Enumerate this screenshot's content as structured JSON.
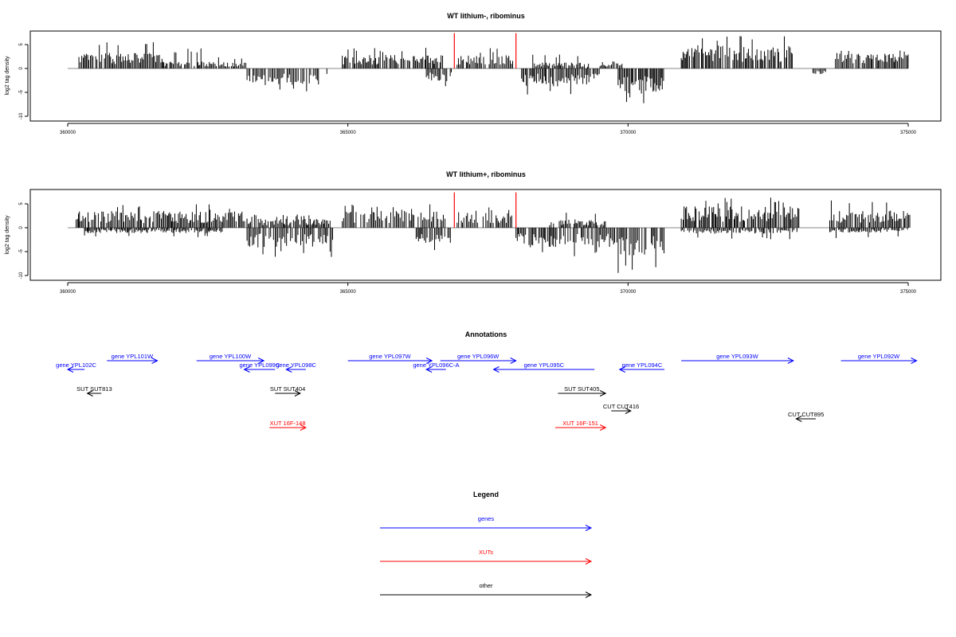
{
  "chart_data": [
    {
      "type": "bar",
      "title": "WT lithium-, ribominus",
      "ylabel": "log2 tag density",
      "xlabel": "",
      "xlim": [
        359000,
        376200
      ],
      "ylim": [
        -11,
        8
      ],
      "xticks": [
        "360000",
        "365000",
        "370000",
        "375000"
      ],
      "yticks": [
        "-10",
        "-5",
        "0",
        "5"
      ],
      "grid": false,
      "bar_color": "#000000",
      "highlight_color": "#ff0000",
      "highlights": [
        {
          "x": 366900,
          "value": 7.4
        },
        {
          "x": 368000,
          "value": 7.4
        }
      ],
      "segments": [
        {
          "start": 360200,
          "end": 361700,
          "sign": 1,
          "amp": 2.6,
          "max": 6.0
        },
        {
          "start": 361700,
          "end": 362600,
          "sign": 1,
          "amp": 1.2,
          "max": 4.3
        },
        {
          "start": 362600,
          "end": 363200,
          "sign": 1,
          "amp": 1.1,
          "max": 2.5
        },
        {
          "start": 363200,
          "end": 364650,
          "sign": -1,
          "amp": 2.8,
          "max": 5.4
        },
        {
          "start": 364900,
          "end": 366700,
          "sign": 1,
          "amp": 2.3,
          "max": 4.5
        },
        {
          "start": 366400,
          "end": 366850,
          "sign": -1,
          "amp": 2.2,
          "max": 4.2
        },
        {
          "start": 366950,
          "end": 367950,
          "sign": 1,
          "amp": 2.2,
          "max": 4.3
        },
        {
          "start": 368100,
          "end": 369500,
          "sign": -1,
          "amp": 3.0,
          "max": 5.7
        },
        {
          "start": 368300,
          "end": 369300,
          "sign": 1,
          "amp": 1.0,
          "max": 3.0
        },
        {
          "start": 369500,
          "end": 369900,
          "sign": 1,
          "amp": 1.2,
          "max": 2.4
        },
        {
          "start": 369800,
          "end": 370650,
          "sign": -1,
          "amp": 4.2,
          "max": 8.0
        },
        {
          "start": 370950,
          "end": 372950,
          "sign": 1,
          "amp": 3.9,
          "max": 7.2
        },
        {
          "start": 373300,
          "end": 373550,
          "sign": -1,
          "amp": 0.9,
          "max": 1.2
        },
        {
          "start": 373700,
          "end": 375000,
          "sign": 1,
          "amp": 2.5,
          "max": 3.8
        }
      ]
    },
    {
      "type": "bar",
      "title": "WT lithium+, ribominus",
      "ylabel": "log2 tag density",
      "xlabel": "",
      "xlim": [
        359000,
        376200
      ],
      "ylim": [
        -11,
        8
      ],
      "xticks": [
        "360000",
        "365000",
        "370000",
        "375000"
      ],
      "yticks": [
        "-10",
        "-5",
        "0",
        "5"
      ],
      "grid": false,
      "bar_color": "#000000",
      "highlight_color": "#ff0000",
      "highlights": [
        {
          "x": 366900,
          "value": 7.4
        },
        {
          "x": 368000,
          "value": 7.4
        }
      ],
      "segments": [
        {
          "start": 360150,
          "end": 363200,
          "sign": 1,
          "amp": 2.8,
          "max": 5.0
        },
        {
          "start": 360300,
          "end": 362800,
          "sign": -1,
          "amp": 0.9,
          "max": 2.0
        },
        {
          "start": 363200,
          "end": 364750,
          "sign": -1,
          "amp": 3.4,
          "max": 6.3
        },
        {
          "start": 363200,
          "end": 364700,
          "sign": 1,
          "amp": 1.5,
          "max": 3.0
        },
        {
          "start": 364900,
          "end": 366750,
          "sign": 1,
          "amp": 2.9,
          "max": 5.0
        },
        {
          "start": 366200,
          "end": 366850,
          "sign": -1,
          "amp": 2.6,
          "max": 5.4
        },
        {
          "start": 366950,
          "end": 367950,
          "sign": 1,
          "amp": 2.6,
          "max": 4.3
        },
        {
          "start": 368000,
          "end": 369800,
          "sign": -1,
          "amp": 3.3,
          "max": 6.3
        },
        {
          "start": 368600,
          "end": 369600,
          "sign": 1,
          "amp": 1.4,
          "max": 3.5
        },
        {
          "start": 369800,
          "end": 370650,
          "sign": -1,
          "amp": 4.8,
          "max": 10.1
        },
        {
          "start": 370950,
          "end": 373050,
          "sign": 1,
          "amp": 3.6,
          "max": 6.5
        },
        {
          "start": 370950,
          "end": 373050,
          "sign": -1,
          "amp": 1.0,
          "max": 2.5
        },
        {
          "start": 373600,
          "end": 375050,
          "sign": 1,
          "amp": 2.9,
          "max": 5.8
        },
        {
          "start": 373600,
          "end": 375000,
          "sign": -1,
          "amp": 0.8,
          "max": 2.2
        }
      ]
    }
  ],
  "annotations": {
    "title": "Annotations",
    "colors": {
      "gene": "#0000ff",
      "xut": "#ff0000",
      "other": "#000000"
    },
    "genes": [
      {
        "label": "gene YPL102C",
        "from": 360300,
        "to": 360000,
        "row": 1
      },
      {
        "label": "gene YPL101W",
        "from": 360700,
        "to": 361600,
        "row": 0
      },
      {
        "label": "gene YPL100W",
        "from": 362300,
        "to": 363500,
        "row": 0
      },
      {
        "label": "gene YPL099C",
        "from": 363700,
        "to": 363150,
        "row": 1
      },
      {
        "label": "gene YPL098C",
        "from": 364250,
        "to": 363900,
        "row": 1
      },
      {
        "label": "gene YPL097W",
        "from": 365000,
        "to": 366500,
        "row": 0
      },
      {
        "label": "gene YPL096C-A",
        "from": 366750,
        "to": 366400,
        "row": 1
      },
      {
        "label": "gene YPL096W",
        "from": 366650,
        "to": 368000,
        "row": 0
      },
      {
        "label": "gene YPL095C",
        "from": 369400,
        "to": 367600,
        "row": 1
      },
      {
        "label": "gene YPL094C",
        "from": 370650,
        "to": 369850,
        "row": 1
      },
      {
        "label": "gene YPL093W",
        "from": 370950,
        "to": 372950,
        "row": 0
      },
      {
        "label": "gene YPL092W",
        "from": 373800,
        "to": 375150,
        "row": 0
      }
    ],
    "others": [
      {
        "label": "SUT SUT813",
        "from": 360600,
        "to": 360350,
        "row": 2
      },
      {
        "label": "SUT SUT404",
        "from": 363700,
        "to": 364150,
        "row": 2
      },
      {
        "label": "SUT SUT405",
        "from": 368750,
        "to": 369600,
        "row": 2
      },
      {
        "label": "CUT CUT416",
        "from": 369700,
        "to": 370050,
        "row": 3
      },
      {
        "label": "CUT CUT895",
        "from": 373350,
        "to": 373000,
        "row": 4
      }
    ],
    "xuts": [
      {
        "label": "XUT 16F-148",
        "from": 363600,
        "to": 364250,
        "row": 5
      },
      {
        "label": "XUT 16F-151",
        "from": 368700,
        "to": 369600,
        "row": 5
      }
    ]
  },
  "legend": {
    "title": "Legend",
    "items": [
      {
        "label": "genes",
        "color": "#0000ff"
      },
      {
        "label": "XUTs",
        "color": "#ff0000"
      },
      {
        "label": "other",
        "color": "#000000"
      }
    ]
  }
}
